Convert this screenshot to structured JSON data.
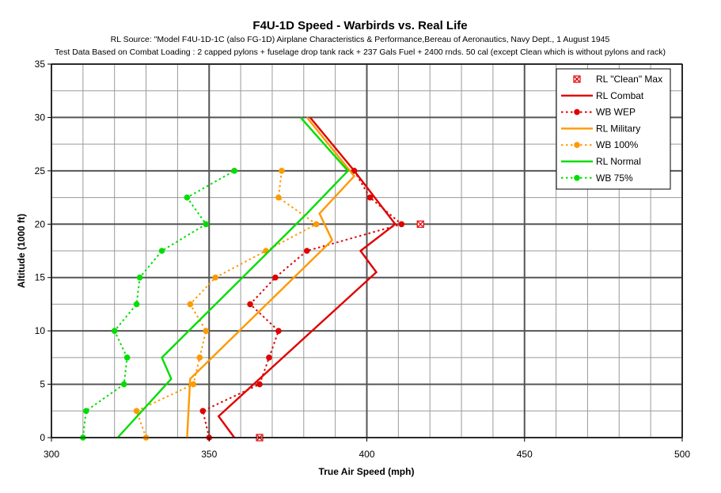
{
  "chart_data": {
    "type": "line",
    "title": "F4U-1D Speed - Warbirds vs. Real Life",
    "subtitle_lines": [
      "RL Source: \"Model F4U-1D-1C (also FG-1D) Airplane Characteristics & Performance,Bereau of Aeronautics, Navy Dept., 1 August 1945",
      "Test Data Based on Combat Loading : 2 capped pylons + fuselage drop tank rack + 237 Gals Fuel + 2400 rnds. 50 cal (except Clean which is without pylons and rack)"
    ],
    "xlabel": "True Air Speed (mph)",
    "ylabel": "Altitude (1000 ft)",
    "xlim": [
      300,
      500
    ],
    "ylim": [
      0,
      35
    ],
    "x_ticks": [
      300,
      350,
      400,
      450,
      500
    ],
    "x_minor_step": 10,
    "y_ticks": [
      0,
      5,
      10,
      15,
      20,
      25,
      30,
      35
    ],
    "y_minor_step": 2.5,
    "grid": true,
    "legend_position": "top-right",
    "series": [
      {
        "name": "RL \"Clean\" Max",
        "color": "#e00000",
        "style": "marker-only",
        "marker": "square-x",
        "points": [
          [
            366,
            0
          ],
          [
            417,
            20
          ]
        ]
      },
      {
        "name": "RL Combat",
        "color": "#e00000",
        "style": "solid",
        "marker": "none",
        "points": [
          [
            358,
            0
          ],
          [
            353,
            2
          ],
          [
            403,
            15.5
          ],
          [
            398,
            17.5
          ],
          [
            409,
            20
          ],
          [
            396,
            25
          ],
          [
            382,
            30
          ]
        ]
      },
      {
        "name": "WB WEP",
        "color": "#e00000",
        "style": "dotted",
        "marker": "circle",
        "points": [
          [
            350,
            0
          ],
          [
            348,
            2.5
          ],
          [
            366,
            5
          ],
          [
            369,
            7.5
          ],
          [
            372,
            10
          ],
          [
            363,
            12.5
          ],
          [
            371,
            15
          ],
          [
            381,
            17.5
          ],
          [
            411,
            20
          ],
          [
            401,
            22.5
          ],
          [
            396,
            25
          ]
        ]
      },
      {
        "name": "RL Military",
        "color": "#ff9900",
        "style": "solid",
        "marker": "none",
        "points": [
          [
            343,
            0
          ],
          [
            344,
            5.5
          ],
          [
            389,
            18.5
          ],
          [
            385,
            21
          ],
          [
            396,
            24.5
          ],
          [
            381,
            30
          ]
        ]
      },
      {
        "name": "WB 100%",
        "color": "#ff9900",
        "style": "dotted",
        "marker": "circle",
        "points": [
          [
            330,
            0
          ],
          [
            327,
            2.5
          ],
          [
            345,
            5
          ],
          [
            347,
            7.5
          ],
          [
            349,
            10
          ],
          [
            344,
            12.5
          ],
          [
            352,
            15
          ],
          [
            368,
            17.5
          ],
          [
            384,
            20
          ],
          [
            372,
            22.5
          ],
          [
            373,
            25
          ]
        ]
      },
      {
        "name": "RL Normal",
        "color": "#00dd00",
        "style": "solid",
        "marker": "none",
        "points": [
          [
            321,
            0
          ],
          [
            338,
            5.5
          ],
          [
            335,
            7.5
          ],
          [
            381,
            21
          ],
          [
            394,
            25
          ],
          [
            379,
            30
          ]
        ]
      },
      {
        "name": "WB 75%",
        "color": "#00dd00",
        "style": "dotted",
        "marker": "circle",
        "points": [
          [
            310,
            0
          ],
          [
            311,
            2.5
          ],
          [
            323,
            5
          ],
          [
            324,
            7.5
          ],
          [
            320,
            10
          ],
          [
            327,
            12.5
          ],
          [
            328,
            15
          ],
          [
            335,
            17.5
          ],
          [
            349,
            20
          ],
          [
            343,
            22.5
          ],
          [
            358,
            25
          ]
        ]
      }
    ]
  }
}
